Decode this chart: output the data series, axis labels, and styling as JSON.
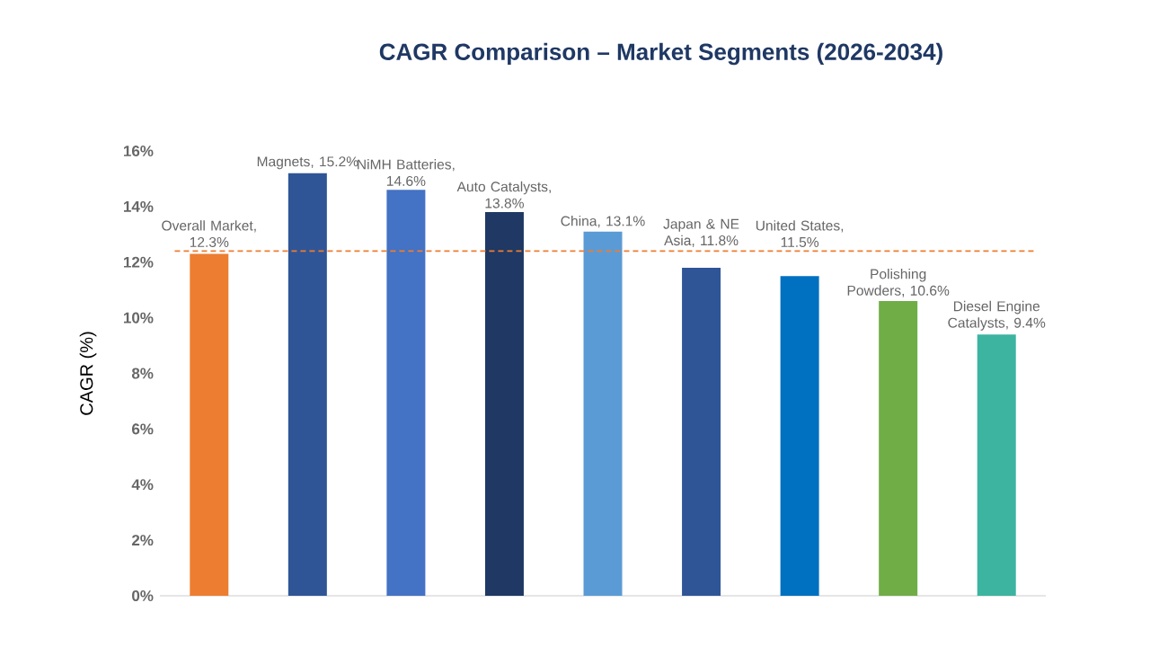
{
  "chart_data": {
    "type": "bar",
    "title": "CAGR Comparison – Market Segments (2026-2034)",
    "ylabel": "CAGR (%)",
    "categories": [
      null,
      null,
      null,
      null,
      null,
      null,
      null,
      null,
      null
    ],
    "values": [
      12.3,
      15.2,
      14.6,
      13.8,
      13.1,
      11.8,
      11.5,
      10.6,
      9.4
    ],
    "colors": [
      "#ed7d31",
      "#2f5597",
      "#4472c4",
      "#1f3864",
      "#5b9bd5",
      "#2f5597",
      "#0070c0",
      "#70ad47",
      "#3cb4a0"
    ],
    "value_labels": [
      "Overall Market, 12.3%",
      "Magnets, 15.2%",
      "NiMH Batteries, 14.6%",
      "Auto Catalysts, 13.8%",
      "China, 13.1%",
      "Japan & NE Asia, 11.8%",
      "United States, 11.5%",
      "Polishing Powders, 10.6%",
      "Diesel Engine Catalysts, 9.4%"
    ],
    "ylim": [
      0,
      16
    ],
    "yticks": [
      {
        "value": 0,
        "label": "0%"
      },
      {
        "value": 2,
        "label": "2%"
      },
      {
        "value": 4,
        "label": "4%"
      },
      {
        "value": 6,
        "label": "6%"
      },
      {
        "value": 8,
        "label": "8%"
      },
      {
        "value": 10,
        "label": "10%"
      },
      {
        "value": 12,
        "label": "12%"
      },
      {
        "value": 14,
        "label": "14%"
      },
      {
        "value": 16,
        "label": "16%"
      }
    ],
    "ref_lines": [
      {
        "axis": "y",
        "value": 12.4,
        "color": "#ed7d31",
        "line_style": "dashed"
      }
    ],
    "grid": false
  }
}
